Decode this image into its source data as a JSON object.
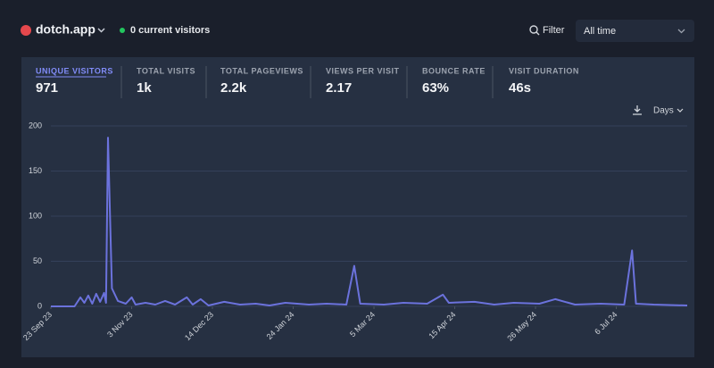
{
  "header": {
    "site": "dotch.app",
    "visitors": "0 current visitors",
    "filter": "Filter",
    "period": "All time"
  },
  "stats": [
    {
      "label": "UNIQUE VISITORS",
      "value": "971"
    },
    {
      "label": "TOTAL VISITS",
      "value": "1k"
    },
    {
      "label": "TOTAL PAGEVIEWS",
      "value": "2.2k"
    },
    {
      "label": "VIEWS PER VISIT",
      "value": "2.17"
    },
    {
      "label": "BOUNCE RATE",
      "value": "63%"
    },
    {
      "label": "VISIT DURATION",
      "value": "46s"
    }
  ],
  "interval": "Days",
  "chart_data": {
    "type": "line",
    "color": "#6b72dc",
    "grid": true,
    "x": [
      "2023-09-23",
      "2023-10-05",
      "2023-10-08",
      "2023-10-10",
      "2023-10-12",
      "2023-10-14",
      "2023-10-16",
      "2023-10-18",
      "2023-10-20",
      "2023-10-21",
      "2023-10-22",
      "2023-10-24",
      "2023-10-27",
      "2023-10-31",
      "2023-11-03",
      "2023-11-05",
      "2023-11-10",
      "2023-11-15",
      "2023-11-20",
      "2023-11-25",
      "2023-12-01",
      "2023-12-04",
      "2023-12-08",
      "2023-12-12",
      "2023-12-20",
      "2023-12-28",
      "2024-01-05",
      "2024-01-12",
      "2024-01-20",
      "2024-02-01",
      "2024-02-10",
      "2024-02-20",
      "2024-02-24",
      "2024-02-27",
      "2024-03-10",
      "2024-03-20",
      "2024-04-01",
      "2024-04-09",
      "2024-04-12",
      "2024-04-25",
      "2024-05-05",
      "2024-05-15",
      "2024-05-28",
      "2024-06-05",
      "2024-06-15",
      "2024-06-28",
      "2024-07-10",
      "2024-07-14",
      "2024-07-16",
      "2024-07-25",
      "2024-08-11"
    ],
    "values": [
      0,
      0,
      10,
      4,
      12,
      3,
      14,
      5,
      15,
      4,
      187,
      20,
      6,
      3,
      10,
      2,
      4,
      2,
      6,
      2,
      10,
      2,
      8,
      1,
      5,
      2,
      3,
      1,
      4,
      2,
      3,
      2,
      45,
      3,
      2,
      4,
      3,
      13,
      4,
      5,
      2,
      4,
      3,
      8,
      2,
      3,
      2,
      62,
      3,
      2,
      1
    ],
    "xlim": [
      "2023-09-23",
      "2024-08-11"
    ],
    "xticks": [
      {
        "value": "2023-09-23",
        "label": "23 Sep 23"
      },
      {
        "value": "2023-11-03",
        "label": "3 Nov 23"
      },
      {
        "value": "2023-12-14",
        "label": "14 Dec 23"
      },
      {
        "value": "2024-01-24",
        "label": "24 Jan 24"
      },
      {
        "value": "2024-03-05",
        "label": "5 Mar 24"
      },
      {
        "value": "2024-04-15",
        "label": "15 Apr 24"
      },
      {
        "value": "2024-05-26",
        "label": "26 May 24"
      },
      {
        "value": "2024-07-06",
        "label": "6 Jul 24"
      }
    ],
    "ylim": [
      0,
      200
    ],
    "yticks": [
      0,
      50,
      100,
      150,
      200
    ]
  }
}
